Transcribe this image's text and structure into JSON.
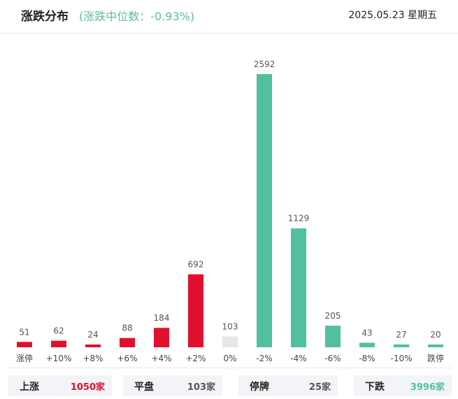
{
  "header": {
    "title": "涨跌分布",
    "subtitle": "(涨跌中位数：-0.93%)",
    "date": "2025.05.23 星期五"
  },
  "colors": {
    "up": "#e0102e",
    "down": "#52c0a0",
    "flat": "#e6e6e6"
  },
  "chart_data": {
    "type": "bar",
    "categories": [
      "涨停",
      "+10%",
      "+8%",
      "+6%",
      "+4%",
      "+2%",
      "0%",
      "-2%",
      "-4%",
      "-6%",
      "-8%",
      "-10%",
      "跌停"
    ],
    "values": [
      51,
      62,
      24,
      88,
      184,
      692,
      103,
      2592,
      1129,
      205,
      43,
      27,
      20
    ],
    "bar_colors": [
      "up",
      "up",
      "up",
      "up",
      "up",
      "up",
      "flat",
      "down",
      "down",
      "down",
      "down",
      "down",
      "down"
    ],
    "ylim": [
      0,
      2592
    ],
    "grid": false,
    "data_labels": true
  },
  "summary": [
    {
      "label": "上涨",
      "count": "1050家",
      "color": "#e0102e"
    },
    {
      "label": "平盘",
      "count": "103家",
      "color": "#555555"
    },
    {
      "label": "停牌",
      "count": "25家",
      "color": "#555555"
    },
    {
      "label": "下跌",
      "count": "3996家",
      "color": "#52c0a0"
    }
  ]
}
